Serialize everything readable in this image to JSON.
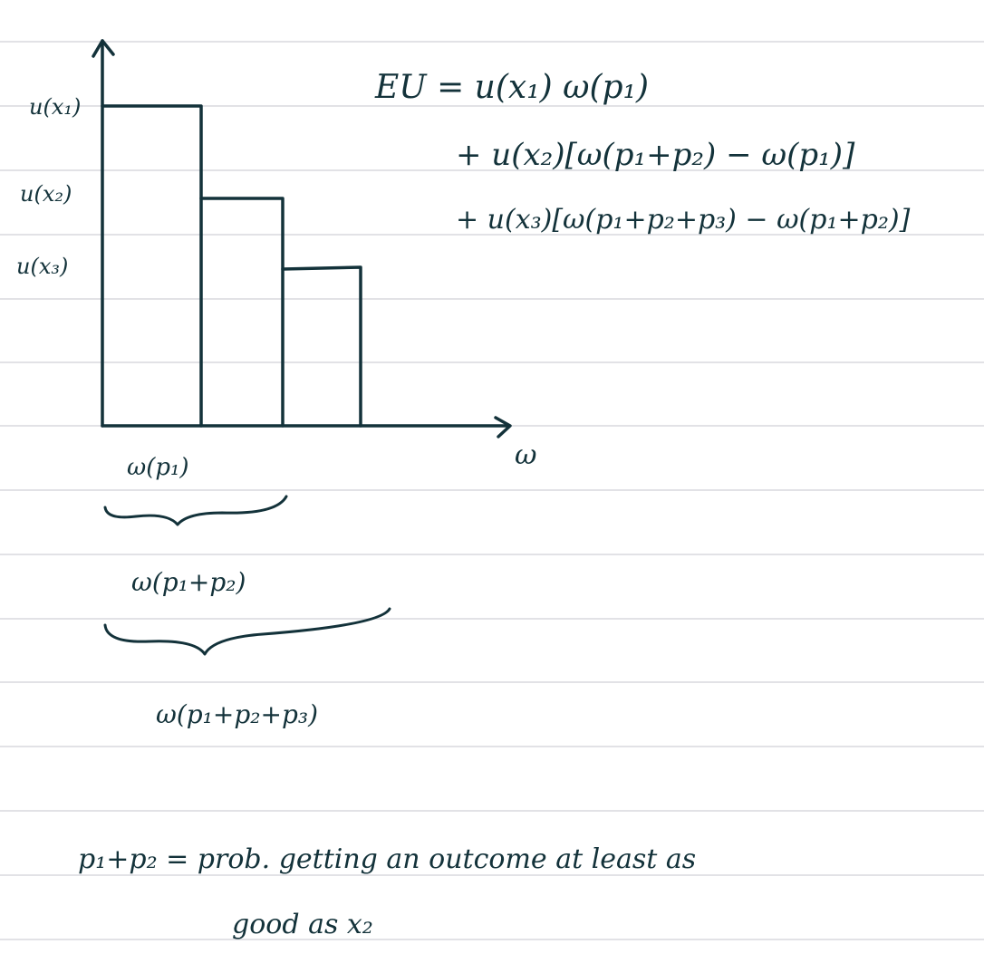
{
  "y_axis_labels": [
    "u(x₁)",
    "u(x₂)",
    "u(x₃)"
  ],
  "x_axis_label": "ω",
  "brace_labels": [
    "ω(p₁)",
    "ω(p₁+p₂)",
    "ω(p₁+p₂+p₃)"
  ],
  "equation": {
    "line1": "EU = u(x₁) ω(p₁)",
    "line2": "+ u(x₂)[ω(p₁+p₂) − ω(p₁)]",
    "line3": "+ u(x₃)[ω(p₁+p₂+p₃) − ω(p₁+p₂)]"
  },
  "note": {
    "line1": "p₁+p₂ = prob. getting an outcome at least as",
    "line2": "good as x₂"
  },
  "colors": {
    "ink": "#13323a",
    "rule": "#d9d9dd",
    "paper": "#ffffff"
  }
}
